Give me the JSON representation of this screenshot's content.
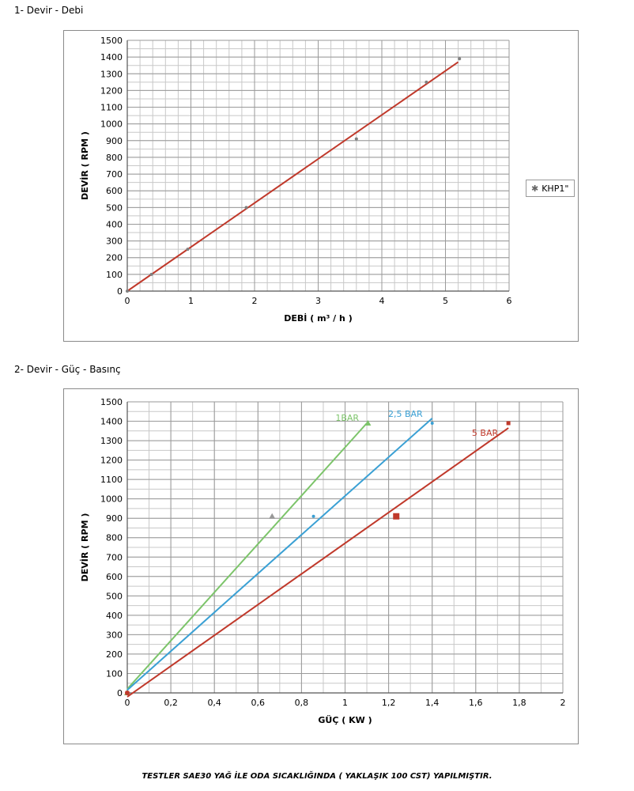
{
  "sections": [
    {
      "title": "1- Devir - Debi"
    },
    {
      "title": "2- Devir - Güç - Basınç"
    }
  ],
  "footer": "TESTLER SAE30 YAĞ İLE ODA SICAKLIĞINDA ( YAKLAŞIK 100 CST) YAPILMIŞTIR.",
  "chart_data": [
    {
      "type": "scatter",
      "xlabel": "DEBİ ( m³ / h )",
      "ylabel": "DEVİR ( RPM )",
      "xlim": [
        0,
        6
      ],
      "ylim": [
        0,
        1500
      ],
      "xticks": [
        0,
        1,
        2,
        3,
        4,
        5,
        6
      ],
      "yticks": [
        0,
        100,
        200,
        300,
        400,
        500,
        600,
        700,
        800,
        900,
        1000,
        1100,
        1200,
        1300,
        1400,
        1500
      ],
      "grid": true,
      "legend_position": "right",
      "series": [
        {
          "name": "KHP1\"",
          "color": "#7f7f7f",
          "x": [
            0,
            0.38,
            0.95,
            1.87,
            3.6,
            4.7,
            5.22
          ],
          "y": [
            0,
            100,
            250,
            500,
            910,
            1250,
            1390
          ]
        }
      ],
      "trendline": {
        "color": "#c0392b",
        "x": [
          0,
          5.2
        ],
        "y": [
          0,
          1370
        ]
      }
    },
    {
      "type": "scatter",
      "xlabel": "GÜÇ ( KW )",
      "ylabel": "DEVİR ( RPM )",
      "xlim": [
        0,
        2
      ],
      "ylim": [
        0,
        1500
      ],
      "xticks": [
        "0",
        "0,2",
        "0,4",
        "0,6",
        "0,8",
        "1",
        "1,2",
        "1,4",
        "1,6",
        "1,8",
        "2"
      ],
      "yticks": [
        0,
        100,
        200,
        300,
        400,
        500,
        600,
        700,
        800,
        900,
        1000,
        1100,
        1200,
        1300,
        1400,
        1500
      ],
      "grid": true,
      "series": [
        {
          "name": "1BAR",
          "color": "#7cc46a",
          "marker": "triangle",
          "x": [
            0,
            0.665,
            1.105
          ],
          "y": [
            0,
            910,
            1390
          ],
          "line": {
            "x": [
              0,
              1.1
            ],
            "y": [
              20,
              1390
            ]
          }
        },
        {
          "name": "2,5 BAR",
          "color": "#3aa0d4",
          "marker": "star",
          "x": [
            0,
            0.855,
            1.4
          ],
          "y": [
            0,
            910,
            1390
          ],
          "line": {
            "x": [
              0,
              1.4
            ],
            "y": [
              15,
              1415
            ]
          }
        },
        {
          "name": "5 BAR",
          "color": "#c0392b",
          "marker": "square",
          "x": [
            0,
            1.235,
            1.75
          ],
          "y": [
            0,
            910,
            1390
          ],
          "line": {
            "x": [
              0,
              1.75
            ],
            "y": [
              -20,
              1365
            ]
          }
        }
      ]
    }
  ]
}
